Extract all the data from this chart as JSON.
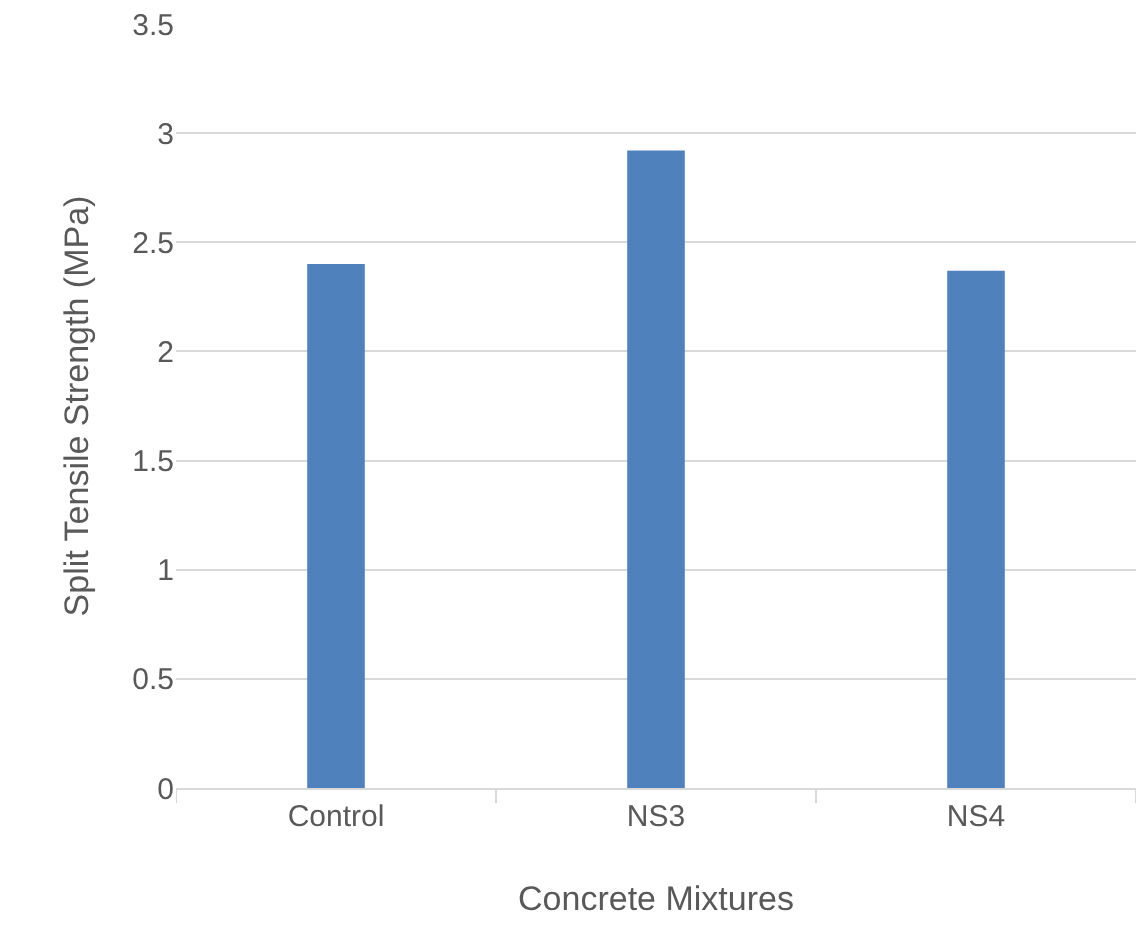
{
  "chart_data": {
    "type": "bar",
    "xlabel": "Concrete Mixtures",
    "ylabel": "Split Tensile Strength (MPa)",
    "categories": [
      "Control",
      "NS3",
      "NS4"
    ],
    "series": [
      {
        "color": "#4f81bd",
        "values": [
          2.4,
          2.92,
          2.37
        ]
      }
    ],
    "ylim": [
      0,
      3.5
    ],
    "yticks": [
      0,
      0.5,
      1,
      1.5,
      2,
      2.5,
      3,
      3.5
    ],
    "grid": "y",
    "legend": false
  }
}
